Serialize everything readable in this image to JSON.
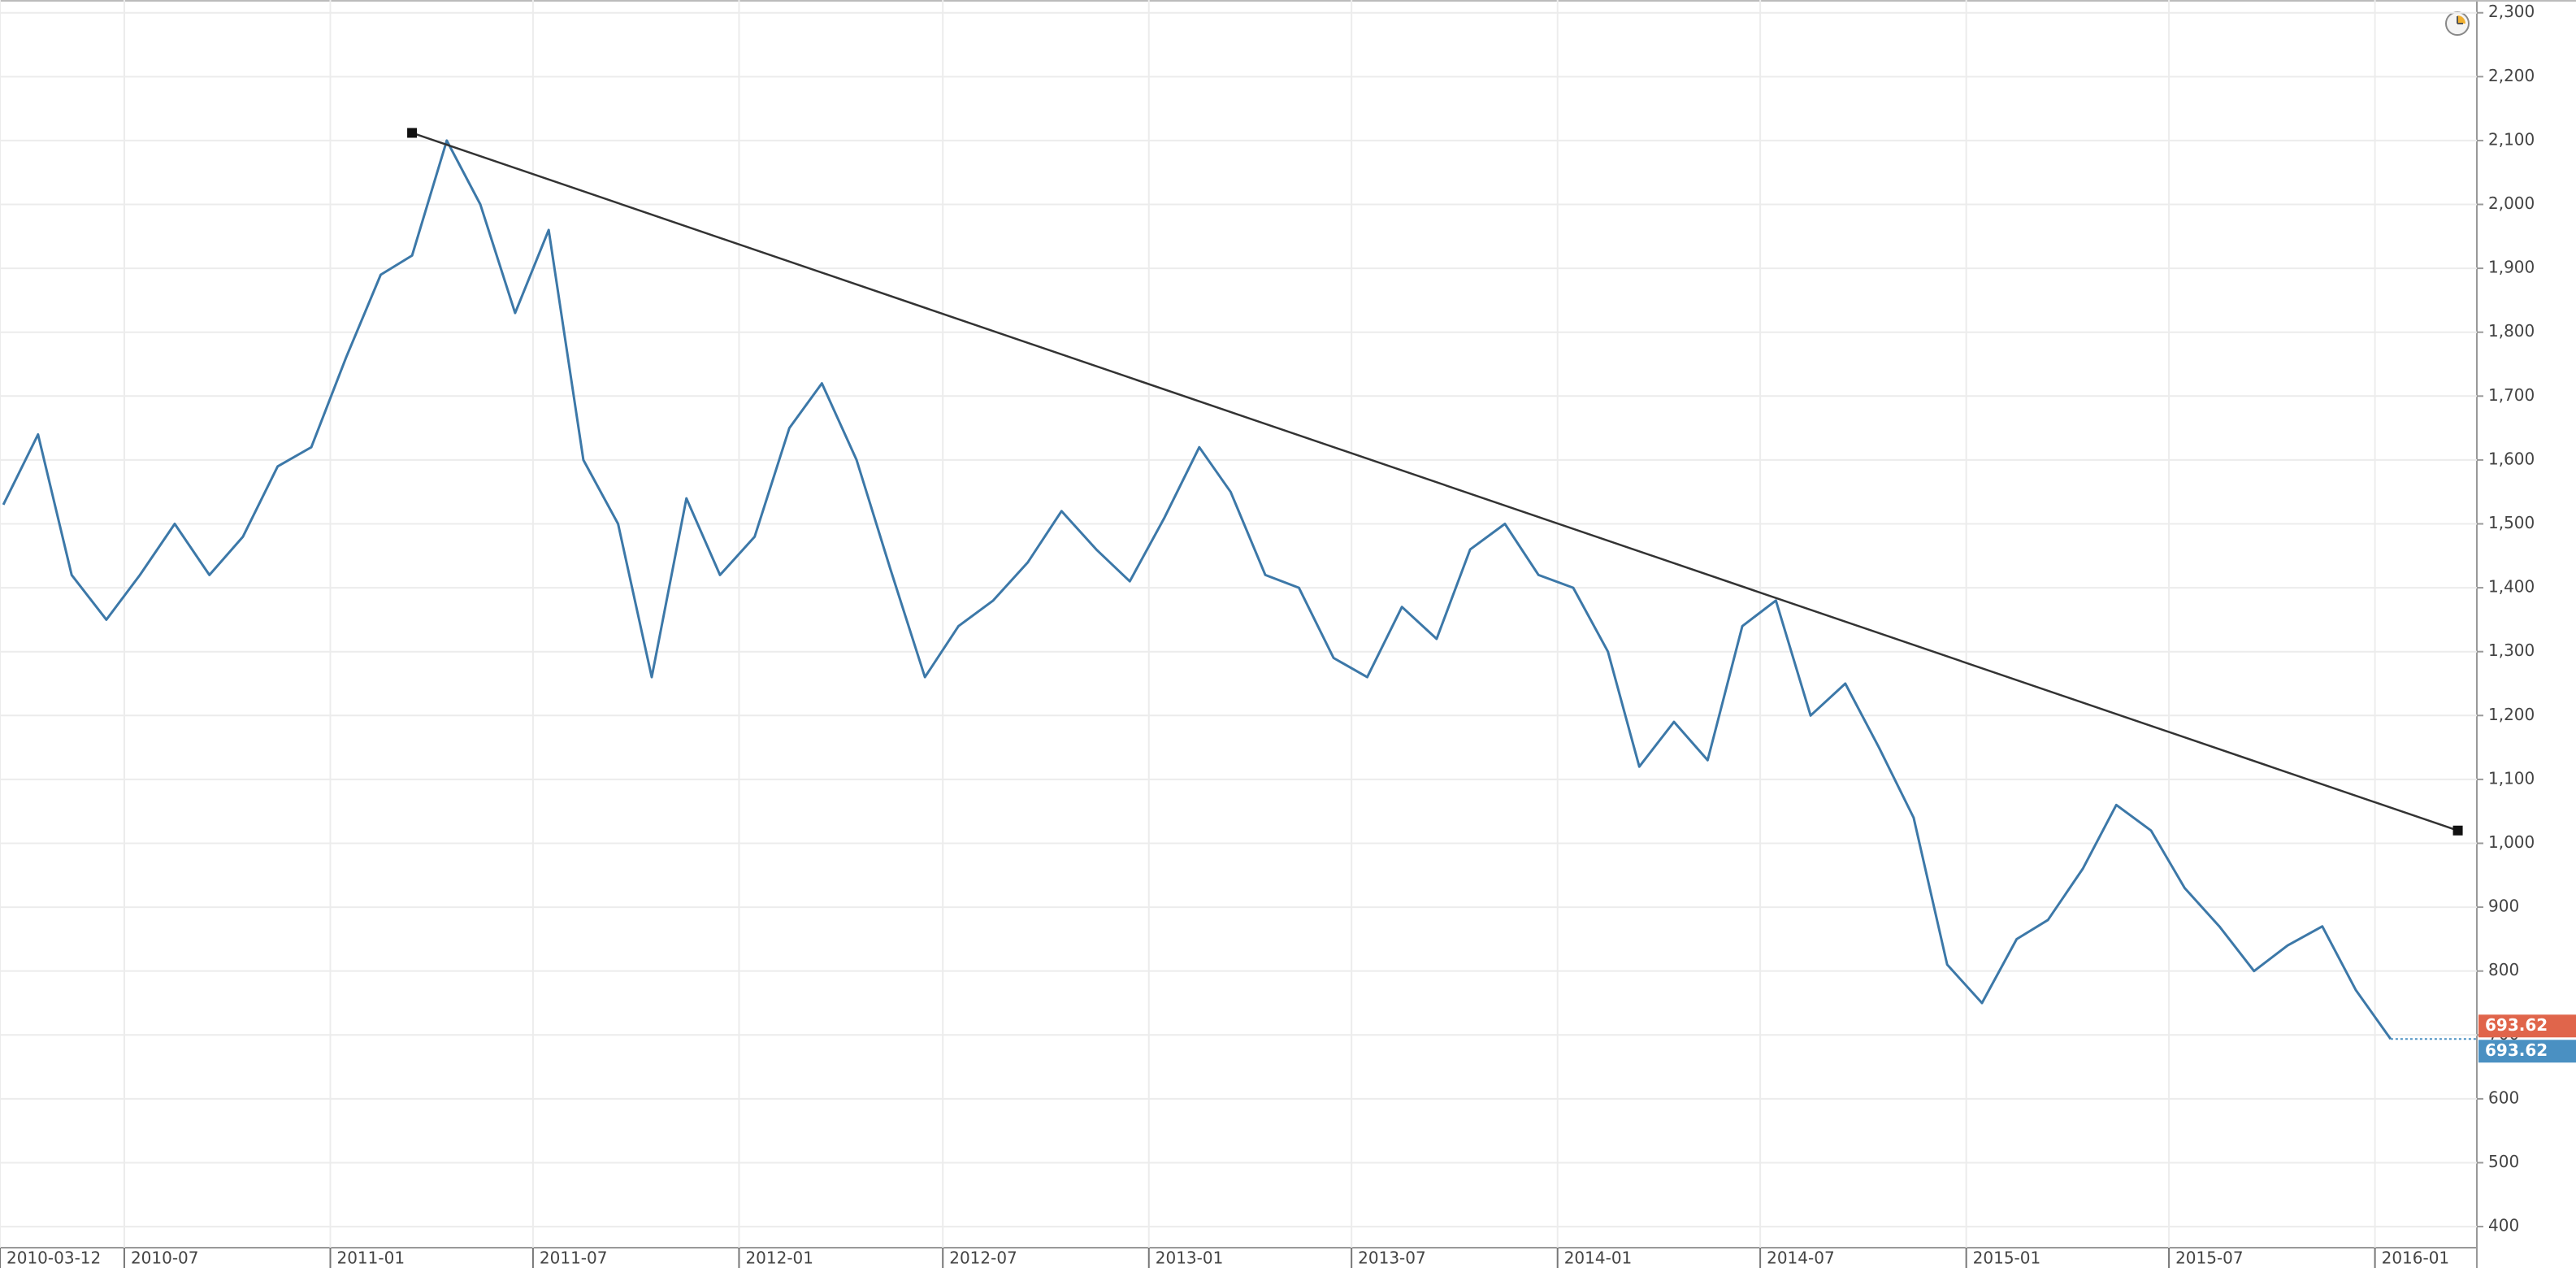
{
  "chart_data": {
    "type": "line",
    "x": [
      "2010-03",
      "2010-04",
      "2010-05",
      "2010-06",
      "2010-07",
      "2010-08",
      "2010-09",
      "2010-10",
      "2010-11",
      "2010-12",
      "2011-01",
      "2011-02",
      "2011-03",
      "2011-04",
      "2011-05",
      "2011-06",
      "2011-07",
      "2011-08",
      "2011-09",
      "2011-10",
      "2011-11",
      "2011-12",
      "2012-01",
      "2012-02",
      "2012-03",
      "2012-04",
      "2012-05",
      "2012-06",
      "2012-07",
      "2012-08",
      "2012-09",
      "2012-10",
      "2012-11",
      "2012-12",
      "2013-01",
      "2013-02",
      "2013-03",
      "2013-04",
      "2013-05",
      "2013-06",
      "2013-07",
      "2013-08",
      "2013-09",
      "2013-10",
      "2013-11",
      "2013-12",
      "2014-01",
      "2014-02",
      "2014-03",
      "2014-04",
      "2014-05",
      "2014-06",
      "2014-07",
      "2014-08",
      "2014-09",
      "2014-10",
      "2014-11",
      "2014-12",
      "2015-01",
      "2015-02",
      "2015-03",
      "2015-04",
      "2015-05",
      "2015-06",
      "2015-07",
      "2015-08",
      "2015-09",
      "2015-10",
      "2015-11",
      "2015-12",
      "2016-01"
    ],
    "series": [
      {
        "color": "#3c78a8",
        "values": [
          1530,
          1640,
          1420,
          1350,
          1420,
          1500,
          1420,
          1480,
          1590,
          1620,
          1760,
          1890,
          1920,
          2100,
          2000,
          1830,
          1960,
          1600,
          1500,
          1260,
          1540,
          1420,
          1480,
          1650,
          1720,
          1600,
          1430,
          1260,
          1340,
          1380,
          1440,
          1520,
          1460,
          1410,
          1510,
          1620,
          1550,
          1420,
          1400,
          1290,
          1260,
          1370,
          1320,
          1460,
          1500,
          1420,
          1400,
          1300,
          1120,
          1190,
          1130,
          1340,
          1380,
          1200,
          1250,
          1150,
          1040,
          810,
          750,
          850,
          880,
          960,
          1060,
          1020,
          930,
          870,
          800,
          840,
          870,
          770,
          693.62
        ]
      }
    ],
    "trendline": {
      "x": [
        "2011-03",
        "2016-03"
      ],
      "values": [
        2112,
        1020
      ],
      "color": "#333333"
    },
    "last_price": 693.62,
    "xlim": [
      "2010-03-12",
      "2016-04"
    ],
    "xticks": [
      "2010-03-12",
      "2010-07",
      "2011-01",
      "2011-07",
      "2012-01",
      "2012-07",
      "2013-01",
      "2013-07",
      "2014-01",
      "2014-07",
      "2015-01",
      "2015-07",
      "2016-01"
    ],
    "ylim": [
      367,
      2320
    ],
    "yticks": [
      400,
      500,
      600,
      700,
      800,
      900,
      {
        "value": 1000,
        "label": "1,000"
      },
      {
        "value": 1100,
        "label": "1,100"
      },
      {
        "value": 1200,
        "label": "1,200"
      },
      {
        "value": 1300,
        "label": "1,300"
      },
      {
        "value": 1400,
        "label": "1,400"
      },
      {
        "value": 1500,
        "label": "1,500"
      },
      {
        "value": 1600,
        "label": "1,600"
      },
      {
        "value": 1700,
        "label": "1,700"
      },
      {
        "value": 1800,
        "label": "1,800"
      },
      {
        "value": 1900,
        "label": "1,900"
      },
      {
        "value": 2000,
        "label": "2,000"
      },
      {
        "value": 2100,
        "label": "2,100"
      },
      {
        "value": 2200,
        "label": "2,200"
      },
      {
        "value": 2300,
        "label": "2,300"
      }
    ],
    "grid": true
  }
}
